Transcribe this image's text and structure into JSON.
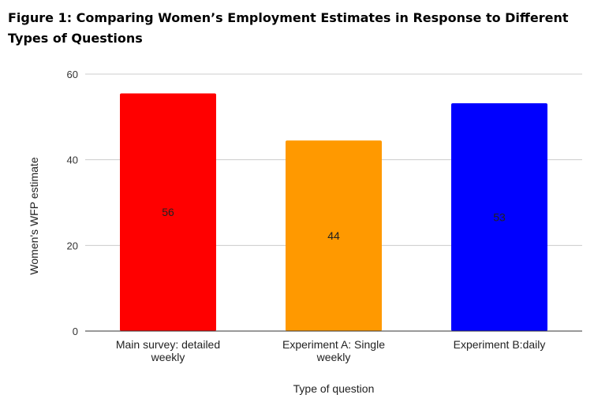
{
  "figure": {
    "title": "Figure 1: Comparing Women’s Employment Estimates in Response to Different Types of Questions"
  },
  "chart_data": {
    "type": "bar",
    "title": "Figure 1: Comparing Women’s Employment Estimates in Response to Different Types of Questions",
    "categories": [
      [
        "Main survey: detailed",
        "weekly"
      ],
      [
        "Experiment A: Single",
        "weekly"
      ],
      [
        "Experiment B:daily"
      ]
    ],
    "values": [
      55.5,
      44.5,
      53.2
    ],
    "data_labels": [
      "56",
      "44",
      "53"
    ],
    "colors": [
      "#ff0000",
      "#ff9900",
      "#0000ff"
    ],
    "xlabel": "Type of question",
    "ylabel": "Women's WFP estimate",
    "ylim": [
      0,
      60
    ],
    "yticks": [
      0,
      20,
      40,
      60
    ],
    "grid": true,
    "legend": "none"
  }
}
